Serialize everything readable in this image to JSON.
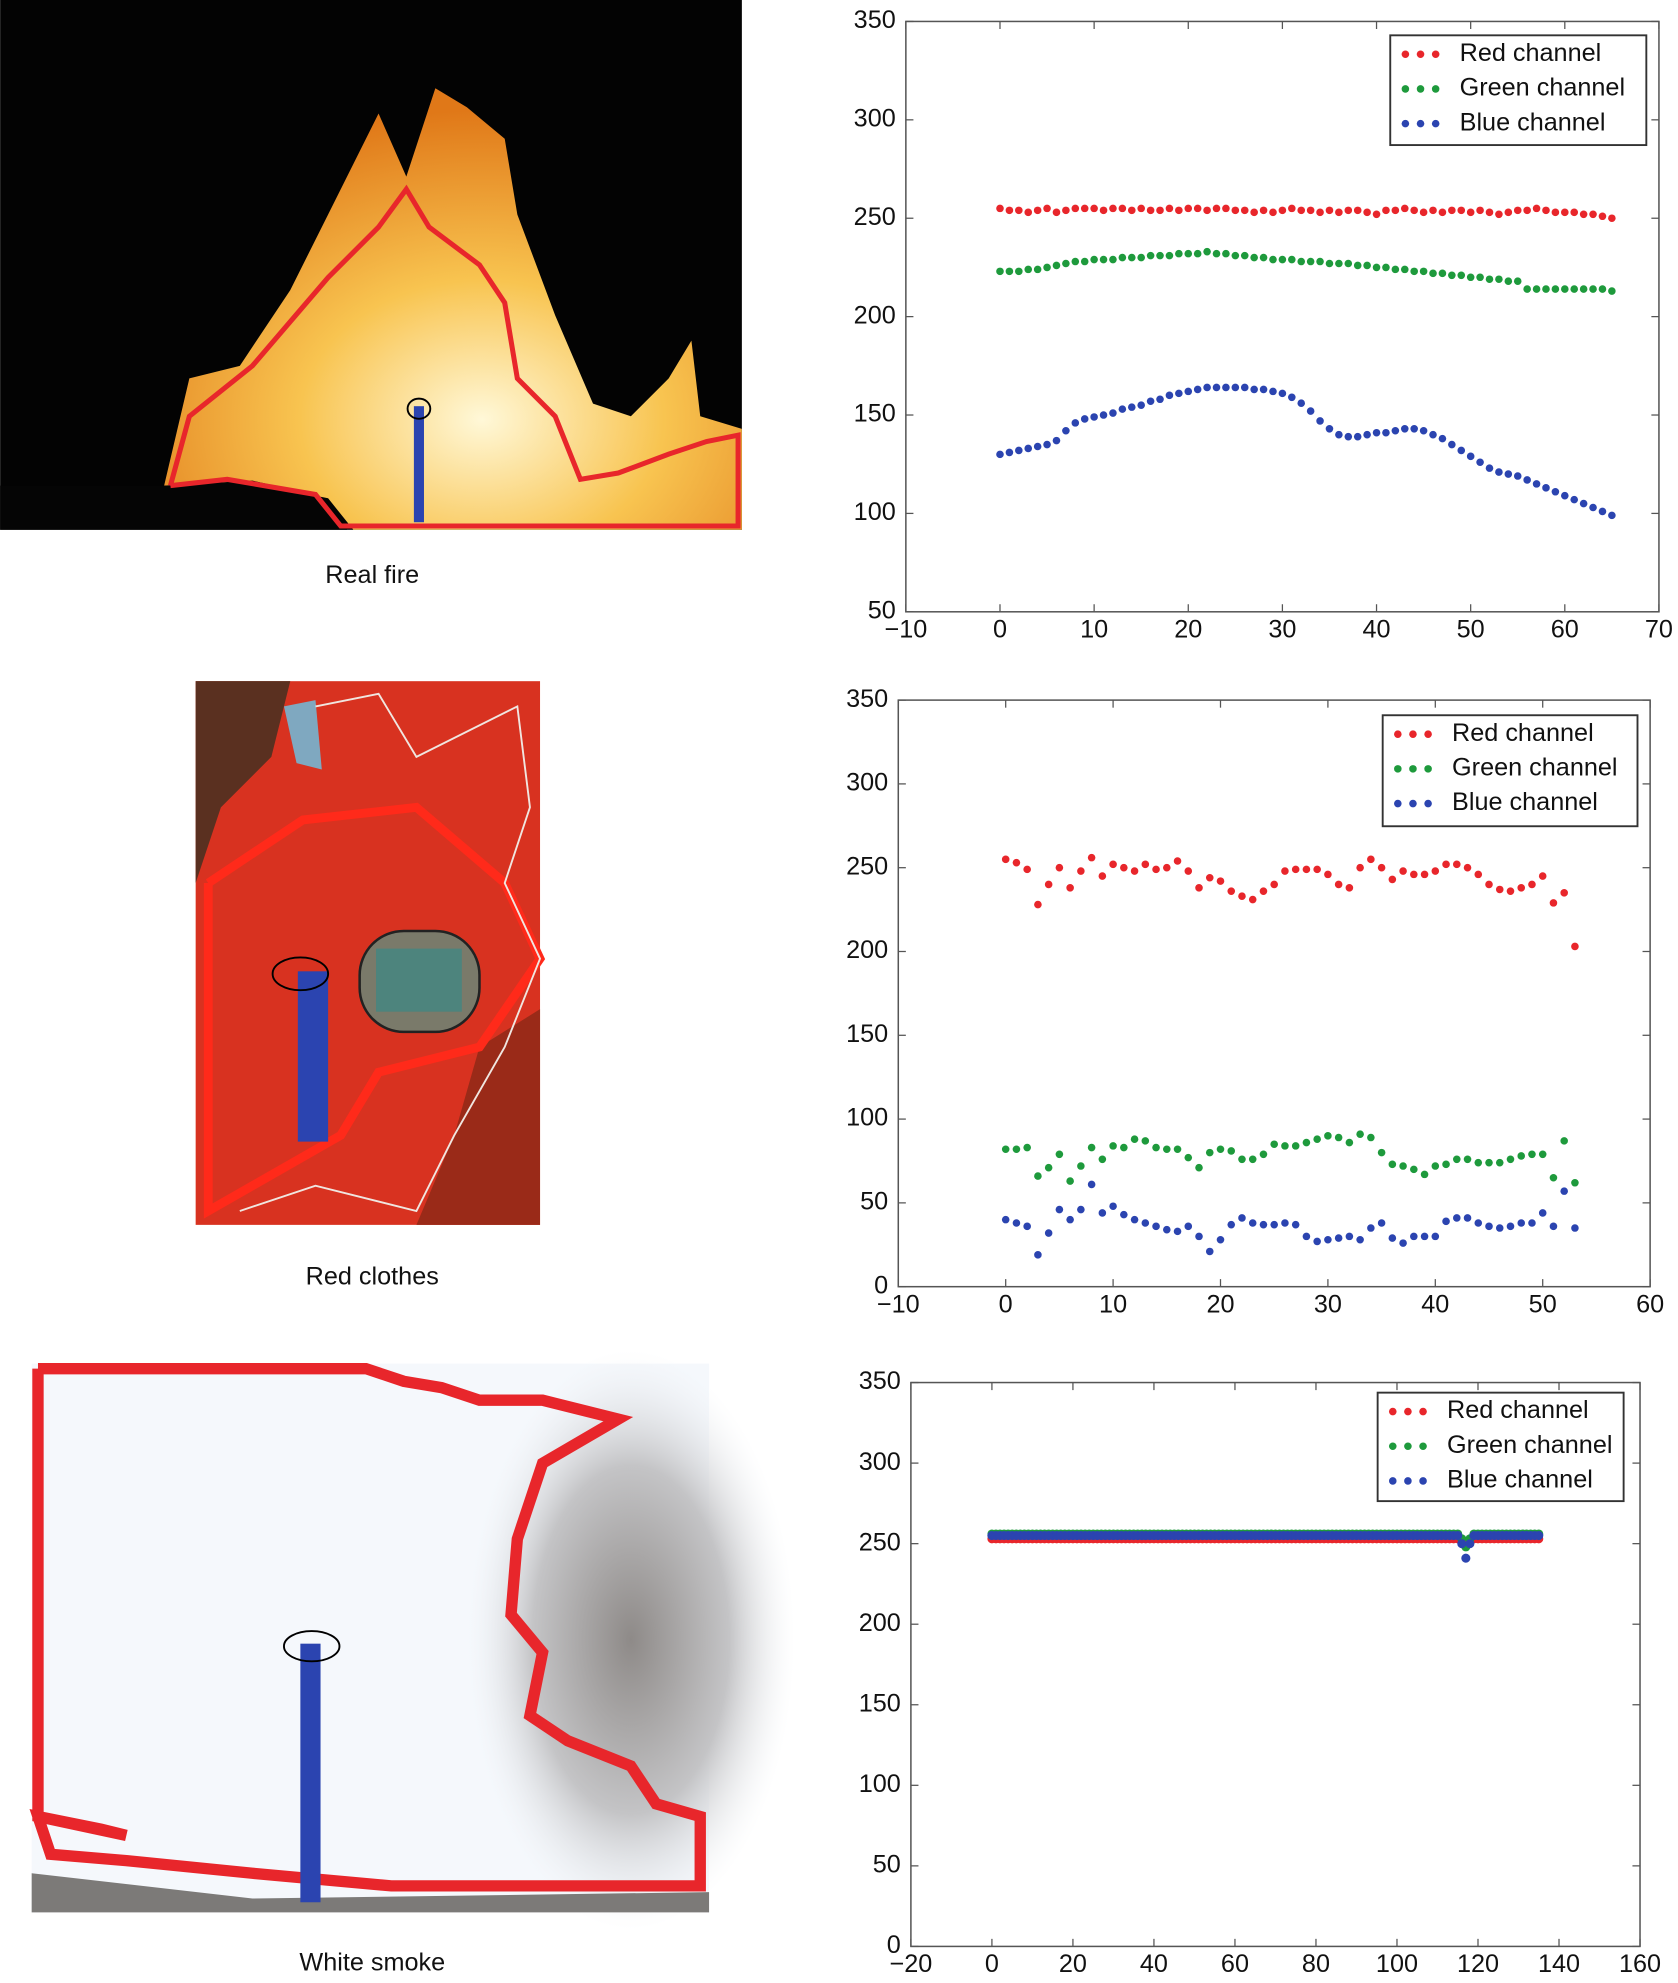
{
  "chart_data": [
    {
      "type": "scatter",
      "caption": "Real fire",
      "x": [
        0,
        1,
        2,
        3,
        4,
        5,
        6,
        7,
        8,
        9,
        10,
        11,
        12,
        13,
        14,
        15,
        16,
        17,
        18,
        19,
        20,
        21,
        22,
        23,
        24,
        25,
        26,
        27,
        28,
        29,
        30,
        31,
        32,
        33,
        34,
        35,
        36,
        37,
        38,
        39,
        40,
        41,
        42,
        43,
        44,
        45,
        46,
        47,
        48,
        49,
        50,
        51,
        52,
        53,
        54,
        55,
        56,
        57,
        58,
        59,
        60,
        61,
        62,
        63,
        64,
        65
      ],
      "series": [
        {
          "name": "Red channel",
          "color": "#e8262b",
          "values": [
            255,
            254,
            254,
            253,
            254,
            255,
            253,
            254,
            255,
            255,
            255,
            254,
            255,
            255,
            254,
            255,
            254,
            254,
            255,
            254,
            255,
            255,
            254,
            255,
            255,
            254,
            254,
            253,
            254,
            253,
            254,
            255,
            254,
            254,
            253,
            254,
            253,
            254,
            254,
            253,
            252,
            254,
            254,
            255,
            254,
            253,
            254,
            253,
            254,
            254,
            253,
            254,
            253,
            252,
            253,
            254,
            254,
            255,
            254,
            253,
            253,
            253,
            252,
            252,
            251,
            250
          ]
        },
        {
          "name": "Green channel",
          "color": "#1e9a3c",
          "values": [
            223,
            223,
            223,
            224,
            224,
            225,
            226,
            227,
            228,
            228,
            229,
            229,
            229,
            230,
            230,
            230,
            231,
            231,
            231,
            232,
            232,
            232,
            233,
            232,
            232,
            231,
            231,
            230,
            230,
            229,
            229,
            229,
            228,
            228,
            228,
            227,
            227,
            227,
            226,
            226,
            225,
            225,
            224,
            224,
            223,
            223,
            222,
            222,
            221,
            221,
            220,
            220,
            219,
            219,
            218,
            218,
            214,
            214,
            214,
            214,
            214,
            214,
            214,
            214,
            214,
            213
          ]
        },
        {
          "name": "Blue channel",
          "color": "#2b44b0",
          "values": [
            130,
            131,
            132,
            133,
            134,
            135,
            137,
            142,
            146,
            148,
            149,
            150,
            151,
            153,
            154,
            155,
            157,
            158,
            160,
            161,
            162,
            163,
            164,
            164,
            164,
            164,
            164,
            163,
            163,
            162,
            161,
            159,
            156,
            152,
            147,
            143,
            140,
            139,
            139,
            140,
            141,
            141,
            142,
            143,
            143,
            142,
            140,
            138,
            135,
            132,
            129,
            126,
            123,
            121,
            120,
            119,
            117,
            115,
            113,
            111,
            109,
            107,
            105,
            103,
            101,
            99
          ]
        }
      ],
      "xlim": [
        -10,
        70
      ],
      "ylim": [
        50,
        350
      ],
      "xticks": [
        {
          "value": -10,
          "label": "−10"
        },
        0,
        10,
        20,
        30,
        40,
        50,
        60,
        70
      ],
      "yticks": [
        50,
        100,
        150,
        200,
        250,
        300,
        350
      ],
      "legend": "upper right"
    },
    {
      "type": "scatter",
      "caption": "Red clothes",
      "x": [
        0,
        1,
        2,
        3,
        4,
        5,
        6,
        7,
        8,
        9,
        10,
        11,
        12,
        13,
        14,
        15,
        16,
        17,
        18,
        19,
        20,
        21,
        22,
        23,
        24,
        25,
        26,
        27,
        28,
        29,
        30,
        31,
        32,
        33,
        34,
        35,
        36,
        37,
        38,
        39,
        40,
        41,
        42,
        43,
        44,
        45,
        46,
        47,
        48,
        49,
        50,
        51,
        52,
        53
      ],
      "series": [
        {
          "name": "Red channel",
          "color": "#e8262b",
          "values": [
            255,
            253,
            249,
            228,
            240,
            250,
            238,
            248,
            256,
            245,
            252,
            250,
            248,
            252,
            249,
            250,
            254,
            248,
            238,
            244,
            242,
            236,
            233,
            231,
            236,
            240,
            248,
            249,
            249,
            249,
            246,
            240,
            238,
            250,
            255,
            250,
            243,
            248,
            246,
            246,
            248,
            252,
            252,
            250,
            246,
            240,
            237,
            236,
            238,
            240,
            245,
            229,
            235,
            203
          ]
        },
        {
          "name": "Green channel",
          "color": "#1e9a3c",
          "values": [
            82,
            82,
            83,
            66,
            71,
            79,
            63,
            72,
            83,
            76,
            84,
            83,
            88,
            87,
            83,
            82,
            82,
            77,
            71,
            80,
            82,
            81,
            76,
            76,
            79,
            85,
            84,
            84,
            86,
            88,
            90,
            89,
            86,
            91,
            89,
            80,
            73,
            72,
            70,
            67,
            72,
            73,
            76,
            76,
            74,
            74,
            74,
            76,
            78,
            79,
            79,
            65,
            87,
            62
          ]
        },
        {
          "name": "Blue channel",
          "color": "#2b44b0",
          "values": [
            40,
            38,
            36,
            19,
            32,
            46,
            40,
            46,
            61,
            44,
            48,
            43,
            40,
            38,
            36,
            34,
            33,
            36,
            30,
            21,
            28,
            37,
            41,
            38,
            37,
            37,
            38,
            37,
            30,
            27,
            28,
            29,
            30,
            28,
            35,
            38,
            29,
            26,
            30,
            30,
            30,
            39,
            41,
            41,
            38,
            36,
            35,
            36,
            38,
            38,
            44,
            36,
            57,
            35
          ]
        }
      ],
      "xlim": [
        -10,
        60
      ],
      "ylim": [
        0,
        350
      ],
      "xticks": [
        {
          "value": -10,
          "label": "−10"
        },
        0,
        10,
        20,
        30,
        40,
        50,
        60
      ],
      "yticks": [
        0,
        50,
        100,
        150,
        200,
        250,
        300,
        350
      ],
      "legend": "upper right"
    },
    {
      "type": "scatter",
      "caption": "White smoke",
      "x": [
        0,
        1,
        2,
        3,
        4,
        5,
        6,
        7,
        8,
        9,
        10,
        11,
        12,
        13,
        14,
        15,
        16,
        17,
        18,
        19,
        20,
        21,
        22,
        23,
        24,
        25,
        26,
        27,
        28,
        29,
        30,
        31,
        32,
        33,
        34,
        35,
        36,
        37,
        38,
        39,
        40,
        41,
        42,
        43,
        44,
        45,
        46,
        47,
        48,
        49,
        50,
        51,
        52,
        53,
        54,
        55,
        56,
        57,
        58,
        59,
        60,
        61,
        62,
        63,
        64,
        65,
        66,
        67,
        68,
        69,
        70,
        71,
        72,
        73,
        74,
        75,
        76,
        77,
        78,
        79,
        80,
        81,
        82,
        83,
        84,
        85,
        86,
        87,
        88,
        89,
        90,
        91,
        92,
        93,
        94,
        95,
        96,
        97,
        98,
        99,
        100,
        101,
        102,
        103,
        104,
        105,
        106,
        107,
        108,
        109,
        110,
        111,
        112,
        113,
        114,
        115,
        116,
        117,
        118,
        119,
        120,
        121,
        122,
        123,
        124,
        125,
        126,
        127,
        128,
        129,
        130,
        131,
        132,
        133,
        134,
        135
      ],
      "series": [
        {
          "name": "Red channel",
          "color": "#e8262b",
          "values": [
            253,
            253,
            253,
            253,
            253,
            253,
            253,
            253,
            253,
            253,
            253,
            253,
            253,
            253,
            253,
            253,
            253,
            253,
            253,
            253,
            253,
            253,
            253,
            253,
            253,
            253,
            253,
            253,
            253,
            253,
            253,
            253,
            253,
            253,
            253,
            253,
            253,
            253,
            253,
            253,
            253,
            253,
            253,
            253,
            253,
            253,
            253,
            253,
            253,
            253,
            253,
            253,
            253,
            253,
            253,
            253,
            253,
            253,
            253,
            253,
            253,
            253,
            253,
            253,
            253,
            253,
            253,
            253,
            253,
            253,
            253,
            253,
            253,
            253,
            253,
            253,
            253,
            253,
            253,
            253,
            253,
            253,
            253,
            253,
            253,
            253,
            253,
            253,
            253,
            253,
            253,
            253,
            253,
            253,
            253,
            253,
            253,
            253,
            253,
            253,
            253,
            253,
            253,
            253,
            253,
            253,
            253,
            253,
            253,
            253,
            253,
            253,
            253,
            253,
            253,
            253,
            252,
            250,
            252,
            253,
            253,
            253,
            253,
            253,
            253,
            253,
            253,
            253,
            253,
            253,
            253,
            253,
            253,
            253,
            253,
            253
          ]
        },
        {
          "name": "Green channel",
          "color": "#1e9a3c",
          "values": [
            256,
            256,
            256,
            256,
            256,
            256,
            256,
            256,
            256,
            256,
            256,
            256,
            256,
            256,
            256,
            256,
            256,
            256,
            256,
            256,
            256,
            256,
            256,
            256,
            256,
            256,
            256,
            256,
            256,
            256,
            256,
            256,
            256,
            256,
            256,
            256,
            256,
            256,
            256,
            256,
            256,
            256,
            256,
            256,
            256,
            256,
            256,
            256,
            256,
            256,
            256,
            256,
            256,
            256,
            256,
            256,
            256,
            256,
            256,
            256,
            256,
            256,
            256,
            256,
            256,
            256,
            256,
            256,
            256,
            256,
            256,
            256,
            256,
            256,
            256,
            256,
            256,
            256,
            256,
            256,
            256,
            256,
            256,
            256,
            256,
            256,
            256,
            256,
            256,
            256,
            256,
            256,
            256,
            256,
            256,
            256,
            256,
            256,
            256,
            256,
            256,
            256,
            256,
            256,
            256,
            256,
            256,
            256,
            256,
            256,
            256,
            256,
            256,
            256,
            256,
            256,
            253,
            248,
            253,
            256,
            256,
            256,
            256,
            256,
            256,
            256,
            256,
            256,
            256,
            256,
            256,
            256,
            256,
            256,
            256,
            256
          ]
        },
        {
          "name": "Blue channel",
          "color": "#2b44b0",
          "values": [
            255,
            255,
            255,
            255,
            255,
            255,
            255,
            255,
            255,
            255,
            255,
            255,
            255,
            255,
            255,
            255,
            255,
            255,
            255,
            255,
            255,
            255,
            255,
            255,
            255,
            255,
            255,
            255,
            255,
            255,
            255,
            255,
            255,
            255,
            255,
            255,
            255,
            255,
            255,
            255,
            255,
            255,
            255,
            255,
            255,
            255,
            255,
            255,
            255,
            255,
            255,
            255,
            255,
            255,
            255,
            255,
            255,
            255,
            255,
            255,
            255,
            255,
            255,
            255,
            255,
            255,
            255,
            255,
            255,
            255,
            255,
            255,
            255,
            255,
            255,
            255,
            255,
            255,
            255,
            255,
            255,
            255,
            255,
            255,
            255,
            255,
            255,
            255,
            255,
            255,
            255,
            255,
            255,
            255,
            255,
            255,
            255,
            255,
            255,
            255,
            255,
            255,
            255,
            255,
            255,
            255,
            255,
            255,
            255,
            255,
            255,
            255,
            255,
            255,
            255,
            255,
            250,
            241,
            250,
            255,
            255,
            255,
            255,
            255,
            255,
            255,
            255,
            255,
            255,
            255,
            255,
            255,
            255,
            255,
            255,
            255
          ]
        }
      ],
      "xlim": [
        -20,
        160
      ],
      "ylim": [
        0,
        350
      ],
      "xticks": [
        {
          "value": -20,
          "label": "−20"
        },
        0,
        20,
        40,
        60,
        80,
        100,
        120,
        140,
        160
      ],
      "yticks": [
        0,
        50,
        100,
        150,
        200,
        250,
        300,
        350
      ],
      "legend": "upper right"
    }
  ]
}
